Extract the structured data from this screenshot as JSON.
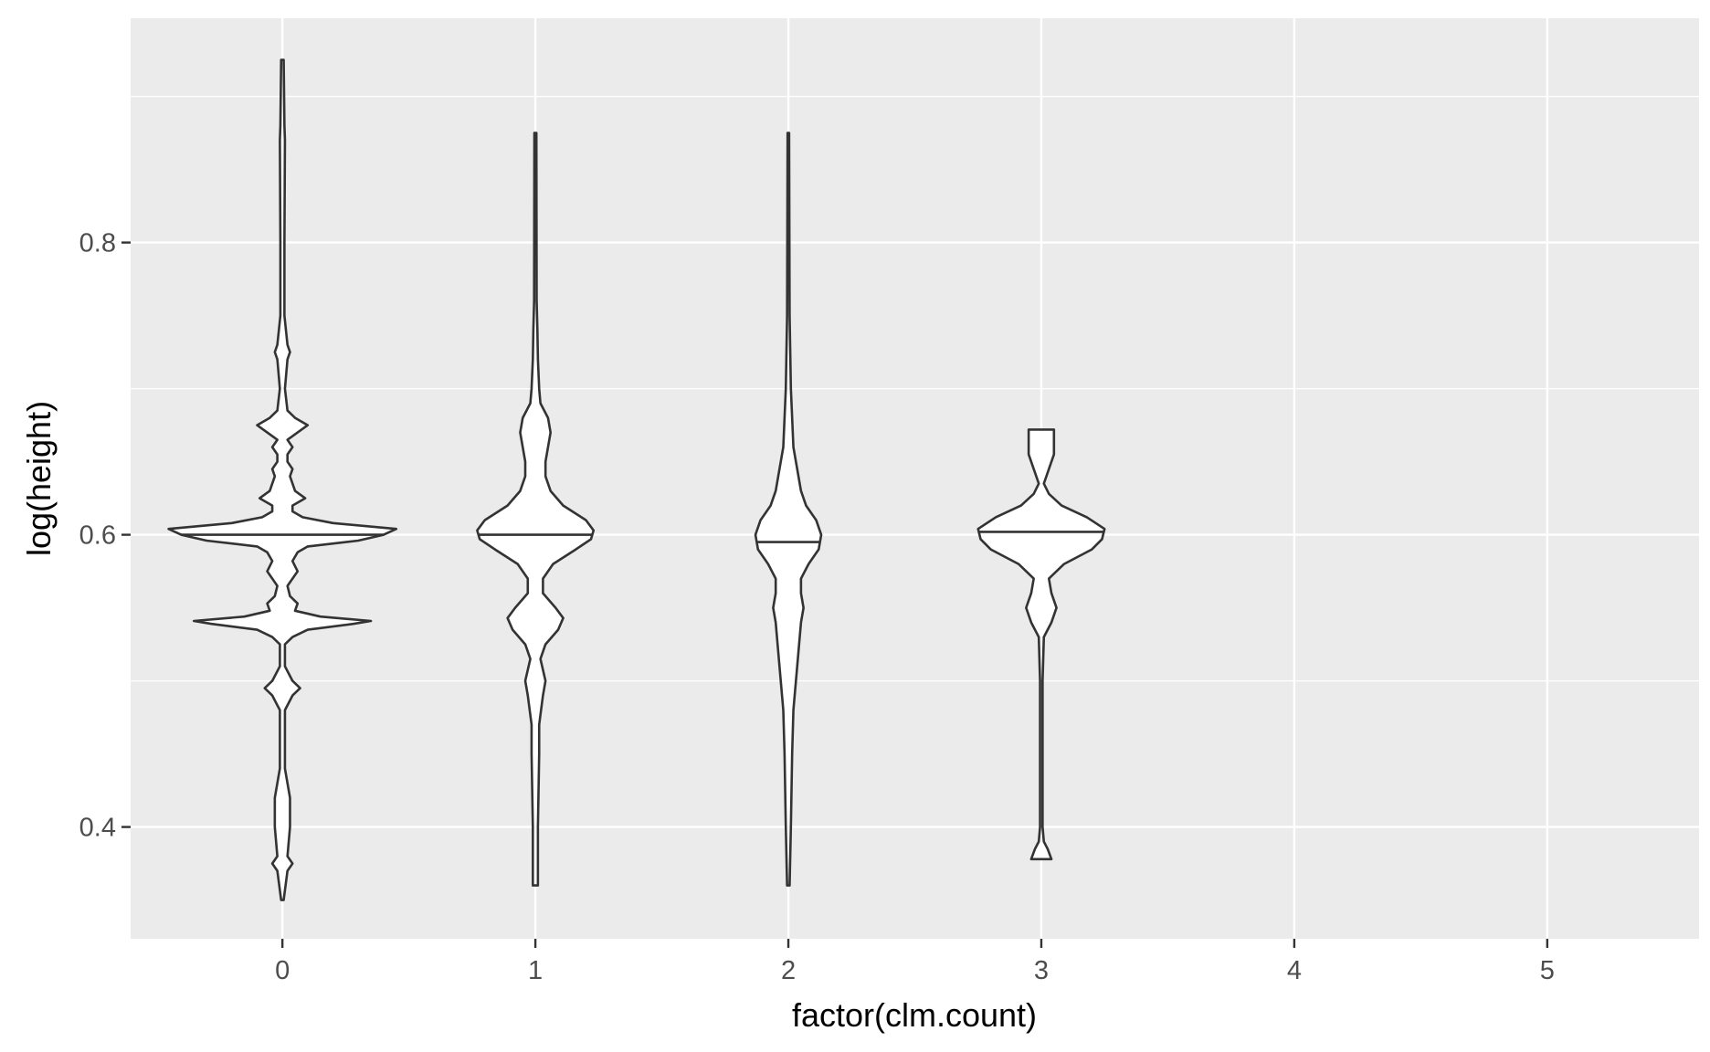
{
  "chart_data": {
    "type": "violin",
    "title": "",
    "xlabel": "factor(clm.count)",
    "ylabel": "log(height)",
    "categories": [
      "0",
      "1",
      "2",
      "3",
      "4",
      "5"
    ],
    "ylim": [
      0.3235,
      0.9535
    ],
    "yticks": [
      0.4,
      0.6,
      0.8
    ],
    "ytick_labels": [
      "0.4",
      "0.6",
      "0.8"
    ],
    "grid": true,
    "legend": "none",
    "colors": {
      "panel_background": "#ebebeb",
      "grid_major": "#ffffff",
      "grid_minor": "#ffffff",
      "violin_fill": "#ffffff",
      "violin_outline": "#333333",
      "tick_text": "#4d4d4d",
      "title_text": "#000000"
    },
    "violins": [
      {
        "category": "0",
        "min": 0.35,
        "max": 0.925,
        "median": 0.6,
        "halfwidth_max": 0.45,
        "profile": [
          [
            0.35,
            0.005
          ],
          [
            0.37,
            0.02
          ],
          [
            0.375,
            0.04
          ],
          [
            0.38,
            0.02
          ],
          [
            0.4,
            0.03
          ],
          [
            0.42,
            0.03
          ],
          [
            0.44,
            0.01
          ],
          [
            0.48,
            0.01
          ],
          [
            0.49,
            0.04
          ],
          [
            0.495,
            0.07
          ],
          [
            0.5,
            0.04
          ],
          [
            0.51,
            0.01
          ],
          [
            0.525,
            0.01
          ],
          [
            0.53,
            0.04
          ],
          [
            0.535,
            0.1
          ],
          [
            0.539,
            0.28
          ],
          [
            0.541,
            0.35
          ],
          [
            0.544,
            0.15
          ],
          [
            0.548,
            0.05
          ],
          [
            0.553,
            0.06
          ],
          [
            0.558,
            0.03
          ],
          [
            0.565,
            0.02
          ],
          [
            0.575,
            0.06
          ],
          [
            0.582,
            0.04
          ],
          [
            0.588,
            0.06
          ],
          [
            0.592,
            0.1
          ],
          [
            0.596,
            0.3
          ],
          [
            0.6,
            0.4
          ],
          [
            0.604,
            0.45
          ],
          [
            0.608,
            0.2
          ],
          [
            0.612,
            0.08
          ],
          [
            0.616,
            0.04
          ],
          [
            0.62,
            0.04
          ],
          [
            0.625,
            0.09
          ],
          [
            0.63,
            0.05
          ],
          [
            0.64,
            0.03
          ],
          [
            0.645,
            0.04
          ],
          [
            0.65,
            0.02
          ],
          [
            0.655,
            0.02
          ],
          [
            0.66,
            0.04
          ],
          [
            0.665,
            0.02
          ],
          [
            0.67,
            0.06
          ],
          [
            0.675,
            0.1
          ],
          [
            0.68,
            0.05
          ],
          [
            0.685,
            0.02
          ],
          [
            0.7,
            0.01
          ],
          [
            0.72,
            0.02
          ],
          [
            0.725,
            0.03
          ],
          [
            0.73,
            0.02
          ],
          [
            0.75,
            0.008
          ],
          [
            0.8,
            0.008
          ],
          [
            0.87,
            0.01
          ],
          [
            0.88,
            0.008
          ],
          [
            0.925,
            0.005
          ]
        ]
      },
      {
        "category": "1",
        "min": 0.36,
        "max": 0.875,
        "median": 0.6,
        "halfwidth_max": 0.23,
        "profile": [
          [
            0.36,
            0.01
          ],
          [
            0.4,
            0.01
          ],
          [
            0.45,
            0.015
          ],
          [
            0.47,
            0.015
          ],
          [
            0.49,
            0.03
          ],
          [
            0.5,
            0.04
          ],
          [
            0.515,
            0.02
          ],
          [
            0.525,
            0.04
          ],
          [
            0.535,
            0.09
          ],
          [
            0.543,
            0.11
          ],
          [
            0.55,
            0.08
          ],
          [
            0.56,
            0.03
          ],
          [
            0.57,
            0.03
          ],
          [
            0.58,
            0.07
          ],
          [
            0.59,
            0.16
          ],
          [
            0.597,
            0.22
          ],
          [
            0.603,
            0.23
          ],
          [
            0.61,
            0.2
          ],
          [
            0.62,
            0.11
          ],
          [
            0.63,
            0.06
          ],
          [
            0.64,
            0.04
          ],
          [
            0.65,
            0.04
          ],
          [
            0.66,
            0.05
          ],
          [
            0.67,
            0.06
          ],
          [
            0.68,
            0.05
          ],
          [
            0.69,
            0.02
          ],
          [
            0.7,
            0.015
          ],
          [
            0.72,
            0.01
          ],
          [
            0.74,
            0.008
          ],
          [
            0.76,
            0.005
          ],
          [
            0.875,
            0.004
          ]
        ]
      },
      {
        "category": "2",
        "min": 0.36,
        "max": 0.875,
        "median": 0.595,
        "halfwidth_max": 0.13,
        "profile": [
          [
            0.36,
            0.005
          ],
          [
            0.4,
            0.01
          ],
          [
            0.45,
            0.015
          ],
          [
            0.48,
            0.02
          ],
          [
            0.5,
            0.03
          ],
          [
            0.52,
            0.04
          ],
          [
            0.54,
            0.05
          ],
          [
            0.55,
            0.06
          ],
          [
            0.56,
            0.05
          ],
          [
            0.57,
            0.05
          ],
          [
            0.58,
            0.08
          ],
          [
            0.59,
            0.12
          ],
          [
            0.6,
            0.13
          ],
          [
            0.61,
            0.11
          ],
          [
            0.62,
            0.07
          ],
          [
            0.63,
            0.05
          ],
          [
            0.64,
            0.04
          ],
          [
            0.66,
            0.02
          ],
          [
            0.68,
            0.015
          ],
          [
            0.7,
            0.01
          ],
          [
            0.75,
            0.005
          ],
          [
            0.875,
            0.003
          ]
        ]
      },
      {
        "category": "3",
        "min": 0.378,
        "max": 0.672,
        "median": 0.602,
        "halfwidth_max": 0.25,
        "profile": [
          [
            0.378,
            0.04
          ],
          [
            0.385,
            0.025
          ],
          [
            0.39,
            0.01
          ],
          [
            0.4,
            0.005
          ],
          [
            0.45,
            0.005
          ],
          [
            0.5,
            0.005
          ],
          [
            0.53,
            0.01
          ],
          [
            0.54,
            0.04
          ],
          [
            0.55,
            0.06
          ],
          [
            0.56,
            0.04
          ],
          [
            0.57,
            0.03
          ],
          [
            0.58,
            0.09
          ],
          [
            0.59,
            0.2
          ],
          [
            0.597,
            0.24
          ],
          [
            0.604,
            0.25
          ],
          [
            0.612,
            0.18
          ],
          [
            0.62,
            0.08
          ],
          [
            0.628,
            0.03
          ],
          [
            0.635,
            0.01
          ],
          [
            0.645,
            0.03
          ],
          [
            0.655,
            0.05
          ],
          [
            0.665,
            0.05
          ],
          [
            0.672,
            0.05
          ]
        ]
      }
    ]
  }
}
